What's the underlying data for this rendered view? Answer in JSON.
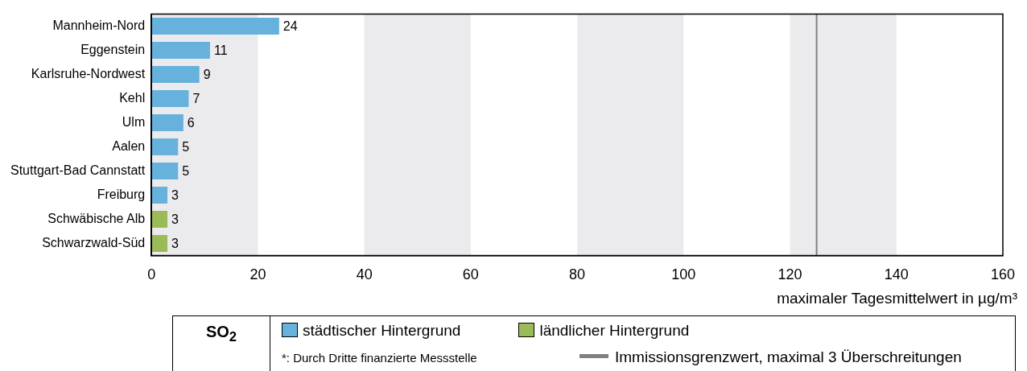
{
  "chart_data": {
    "type": "bar",
    "orientation": "horizontal",
    "xlabel": "maximaler Tagesmittelwert in µg/m³",
    "legend_title": "SO$_{2}$",
    "categories": [
      "Mannheim-Nord",
      "Eggenstein",
      "Karlsruhe-Nordwest",
      "Kehl",
      "Ulm",
      "Aalen",
      "Stuttgart-Bad Cannstatt",
      "Freiburg",
      "Schwäbische Alb",
      "Schwarzwald-Süd"
    ],
    "series": [
      {
        "name": "städtischer Hintergrund",
        "color": "#66b2dd",
        "values": [
          24,
          11,
          9,
          7,
          6,
          5,
          5,
          3,
          null,
          null
        ]
      },
      {
        "name": "ländlicher Hintergrund",
        "color": "#9bbb59",
        "values": [
          null,
          null,
          null,
          null,
          null,
          null,
          null,
          null,
          3,
          3
        ]
      }
    ],
    "xlim": [
      0,
      160
    ],
    "xticks": [
      0,
      20,
      40,
      60,
      80,
      100,
      120,
      140,
      160
    ],
    "bands": [
      {
        "axis": "x",
        "from": 0,
        "to": 20,
        "color": "#ebebee"
      },
      {
        "axis": "x",
        "from": 40,
        "to": 60,
        "color": "#ebebee"
      },
      {
        "axis": "x",
        "from": 80,
        "to": 100,
        "color": "#ebebee"
      },
      {
        "axis": "x",
        "from": 120,
        "to": 140,
        "color": "#ebebee"
      }
    ],
    "ref_lines": [
      {
        "axis": "x",
        "value": 125,
        "label": "Immissionsgrenzwert, maximal 3 Überschreitungen",
        "color": "#808080"
      }
    ],
    "annotations": [
      "*: Durch Dritte finanzierte Messstelle"
    ],
    "data_labels": true,
    "grid": false,
    "legend": "bottom"
  }
}
